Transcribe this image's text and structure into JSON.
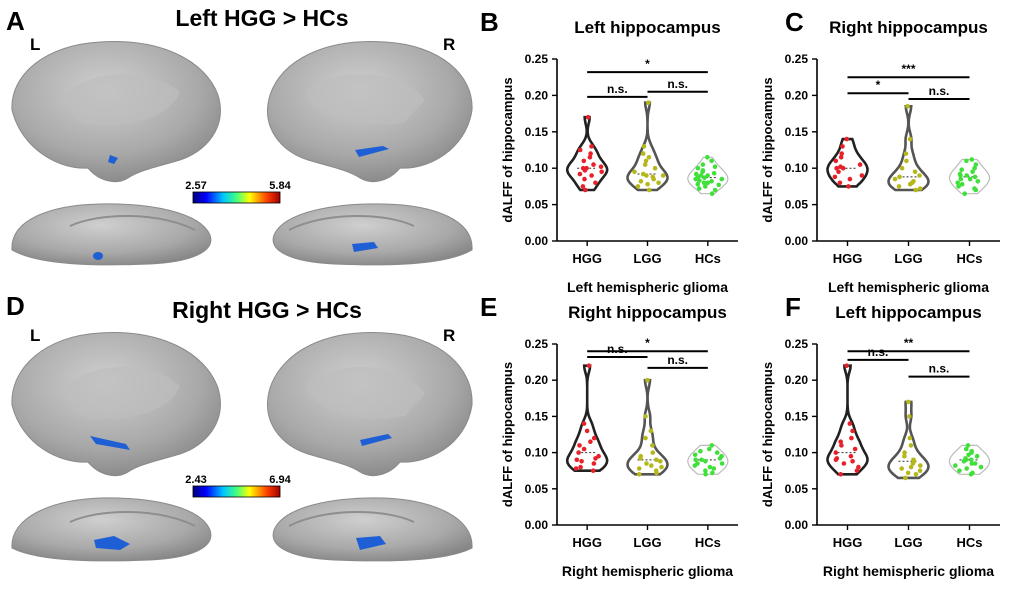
{
  "panelA": {
    "letter": "A",
    "title": "Left HGG > HCs",
    "left_label": "L",
    "right_label": "R",
    "cb_min": "2.57",
    "cb_max": "5.84"
  },
  "panelD": {
    "letter": "D",
    "title": "Right HGG > HCs",
    "left_label": "L",
    "right_label": "R",
    "cb_min": "2.43",
    "cb_max": "6.94"
  },
  "colors": {
    "hgg": "#e8202a",
    "lgg": "#b5b81a",
    "hcs": "#3fe03a",
    "violin": "#222222",
    "lgg_violin": "#555555",
    "brain": "#a8a8a8",
    "activation": "#1f5fd6"
  },
  "chart_data": [
    {
      "panel": "B",
      "type": "violin",
      "title": "Left hippocampus",
      "ylabel": "dALFF of hippocampus",
      "xlabel": "Left hemispheric glioma",
      "categories": [
        "HGG",
        "LGG",
        "HCs"
      ],
      "ylim": [
        0,
        0.25
      ],
      "yticks": [
        "0.00",
        "0.05",
        "0.10",
        "0.15",
        "0.20",
        "0.25"
      ],
      "points": {
        "HGG": [
          0.07,
          0.075,
          0.08,
          0.085,
          0.09,
          0.092,
          0.095,
          0.097,
          0.1,
          0.1,
          0.102,
          0.105,
          0.11,
          0.115,
          0.12,
          0.125,
          0.13,
          0.17
        ],
        "LGG": [
          0.07,
          0.075,
          0.078,
          0.08,
          0.082,
          0.085,
          0.088,
          0.09,
          0.09,
          0.092,
          0.095,
          0.1,
          0.105,
          0.11,
          0.115,
          0.12,
          0.13,
          0.19
        ],
        "HCs": [
          0.065,
          0.07,
          0.072,
          0.075,
          0.077,
          0.078,
          0.08,
          0.08,
          0.082,
          0.083,
          0.085,
          0.085,
          0.087,
          0.088,
          0.09,
          0.09,
          0.092,
          0.093,
          0.095,
          0.097,
          0.1,
          0.102,
          0.105,
          0.11,
          0.115
        ]
      },
      "comparisons": [
        {
          "from": "HGG",
          "to": "HCs",
          "label": "*",
          "y": 0.232
        },
        {
          "from": "HGG",
          "to": "LGG",
          "label": "n.s.",
          "y": 0.198
        },
        {
          "from": "LGG",
          "to": "HCs",
          "label": "n.s.",
          "y": 0.205
        }
      ]
    },
    {
      "panel": "C",
      "type": "violin",
      "title": "Right hippocampus",
      "ylabel": "dALFF of hippocampus",
      "xlabel": "Left hemispheric glioma",
      "categories": [
        "HGG",
        "LGG",
        "HCs"
      ],
      "ylim": [
        0,
        0.25
      ],
      "yticks": [
        "0.00",
        "0.05",
        "0.10",
        "0.15",
        "0.20",
        "0.25"
      ],
      "points": {
        "HGG": [
          0.075,
          0.08,
          0.085,
          0.088,
          0.09,
          0.095,
          0.1,
          0.1,
          0.102,
          0.105,
          0.11,
          0.115,
          0.12,
          0.13,
          0.14
        ],
        "LGG": [
          0.07,
          0.072,
          0.075,
          0.078,
          0.08,
          0.082,
          0.085,
          0.088,
          0.09,
          0.095,
          0.1,
          0.11,
          0.12,
          0.14,
          0.185
        ],
        "HCs": [
          0.065,
          0.07,
          0.072,
          0.075,
          0.078,
          0.08,
          0.082,
          0.085,
          0.085,
          0.088,
          0.09,
          0.09,
          0.092,
          0.095,
          0.098,
          0.1,
          0.105,
          0.11,
          0.112
        ]
      },
      "comparisons": [
        {
          "from": "HGG",
          "to": "HCs",
          "label": "***",
          "y": 0.225
        },
        {
          "from": "HGG",
          "to": "LGG",
          "label": "*",
          "y": 0.203
        },
        {
          "from": "LGG",
          "to": "HCs",
          "label": "n.s.",
          "y": 0.195
        }
      ]
    },
    {
      "panel": "E",
      "type": "violin",
      "title": "Right hippocampus",
      "ylabel": "dALFF of hippocampus",
      "xlabel": "Right hemispheric glioma",
      "categories": [
        "HGG",
        "LGG",
        "HCs"
      ],
      "ylim": [
        0,
        0.25
      ],
      "yticks": [
        "0.00",
        "0.05",
        "0.10",
        "0.15",
        "0.20",
        "0.25"
      ],
      "points": {
        "HGG": [
          0.075,
          0.078,
          0.08,
          0.085,
          0.088,
          0.09,
          0.092,
          0.095,
          0.1,
          0.105,
          0.11,
          0.115,
          0.12,
          0.13,
          0.14,
          0.22
        ],
        "LGG": [
          0.07,
          0.072,
          0.075,
          0.078,
          0.08,
          0.082,
          0.085,
          0.088,
          0.09,
          0.092,
          0.095,
          0.1,
          0.11,
          0.12,
          0.13,
          0.15,
          0.2
        ],
        "HCs": [
          0.07,
          0.072,
          0.075,
          0.078,
          0.08,
          0.082,
          0.085,
          0.085,
          0.088,
          0.09,
          0.09,
          0.092,
          0.095,
          0.097,
          0.1,
          0.102,
          0.105,
          0.11
        ]
      },
      "comparisons": [
        {
          "from": "HGG",
          "to": "HCs",
          "label": "*",
          "y": 0.24
        },
        {
          "from": "HGG",
          "to": "LGG",
          "label": "n.s.",
          "y": 0.232
        },
        {
          "from": "LGG",
          "to": "HCs",
          "label": "n.s.",
          "y": 0.217
        }
      ]
    },
    {
      "panel": "F",
      "type": "violin",
      "title": "Left hippocampus",
      "ylabel": "dALFF of hippocampus",
      "xlabel": "Right hemispheric glioma",
      "categories": [
        "HGG",
        "LGG",
        "HCs"
      ],
      "ylim": [
        0,
        0.25
      ],
      "yticks": [
        "0.00",
        "0.05",
        "0.10",
        "0.15",
        "0.20",
        "0.25"
      ],
      "points": {
        "HGG": [
          0.07,
          0.075,
          0.08,
          0.085,
          0.088,
          0.09,
          0.092,
          0.095,
          0.1,
          0.105,
          0.11,
          0.115,
          0.12,
          0.13,
          0.14,
          0.22
        ],
        "LGG": [
          0.065,
          0.07,
          0.072,
          0.075,
          0.078,
          0.08,
          0.082,
          0.085,
          0.088,
          0.09,
          0.095,
          0.1,
          0.11,
          0.12,
          0.15,
          0.17
        ],
        "HCs": [
          0.07,
          0.072,
          0.075,
          0.078,
          0.08,
          0.082,
          0.085,
          0.085,
          0.088,
          0.09,
          0.09,
          0.092,
          0.095,
          0.097,
          0.1,
          0.102,
          0.105,
          0.11
        ]
      },
      "comparisons": [
        {
          "from": "HGG",
          "to": "HCs",
          "label": "**",
          "y": 0.24
        },
        {
          "from": "HGG",
          "to": "LGG",
          "label": "n.s.",
          "y": 0.228
        },
        {
          "from": "LGG",
          "to": "HCs",
          "label": "n.s.",
          "y": 0.205
        }
      ]
    }
  ]
}
